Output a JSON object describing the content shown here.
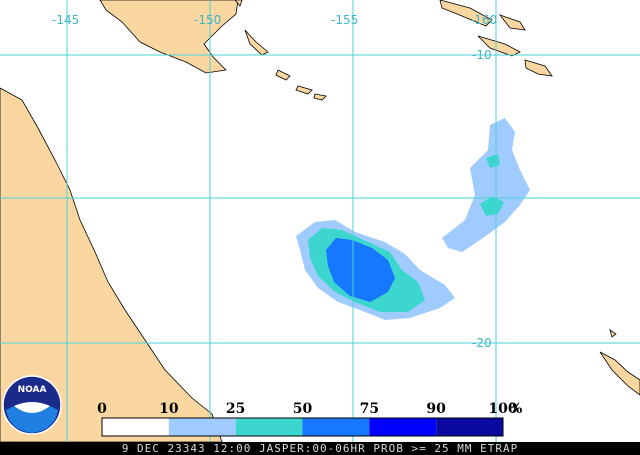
{
  "grid_labels": {
    "lon": [
      "-145",
      "-150",
      "-155",
      "-160"
    ],
    "lat": [
      "-10",
      "-20"
    ]
  },
  "legend": {
    "labels": [
      0,
      10,
      25,
      50,
      75,
      90,
      100
    ],
    "unit": "%",
    "colors": [
      "#ffffff",
      "#9fcbff",
      "#3dd6cf",
      "#1677ff",
      "#0000ff",
      "#0a0aa0"
    ]
  },
  "footer": "9 DEC 23343 12:00 JASPER:00-06HR PROB >= 25 MM ETRAP",
  "logo": "NOAA"
}
